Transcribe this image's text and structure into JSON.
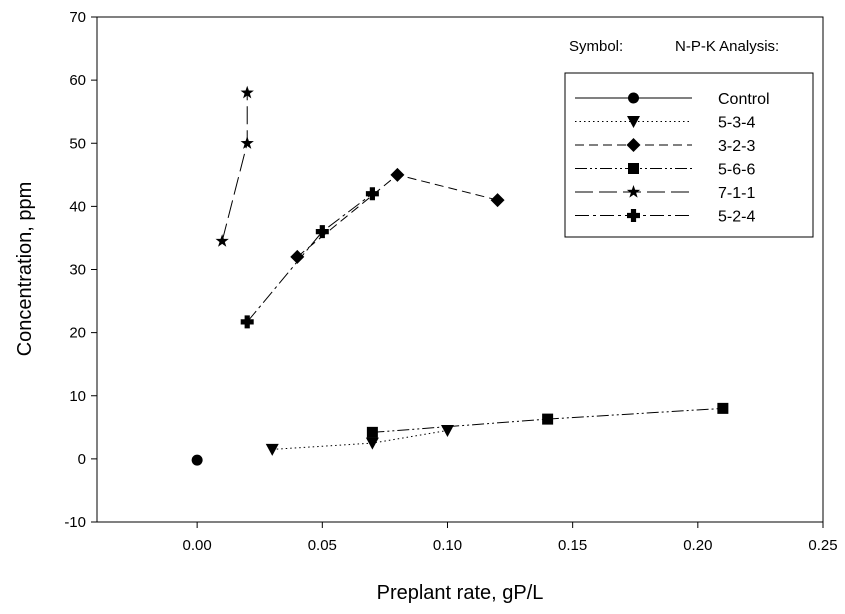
{
  "chart_data": {
    "type": "scatter",
    "xlabel": "Preplant rate, gP/L",
    "ylabel": "Concentration, ppm",
    "xlim": [
      -0.04,
      0.25
    ],
    "ylim": [
      -10,
      70
    ],
    "xticks": [
      "0.00",
      "0.05",
      "0.10",
      "0.15",
      "0.20",
      "0.25"
    ],
    "yticks": [
      "-10",
      "0",
      "10",
      "20",
      "30",
      "40",
      "50",
      "60",
      "70"
    ],
    "grid": false,
    "legend": {
      "placement": "top-right",
      "symbol_header": "Symbol:",
      "analysis_header": "N-P-K Analysis:"
    },
    "series": [
      {
        "name": "Control",
        "marker": "circle",
        "dash": "solid",
        "points": [
          [
            0.0,
            -0.2
          ]
        ]
      },
      {
        "name": "5-3-4",
        "marker": "triangle-down",
        "dash": "dotted",
        "points": [
          [
            0.03,
            1.5
          ],
          [
            0.07,
            2.5
          ],
          [
            0.1,
            4.5
          ]
        ]
      },
      {
        "name": "3-2-3",
        "marker": "diamond",
        "dash": "dashed",
        "points": [
          [
            0.04,
            32.0
          ],
          [
            0.08,
            45.0
          ],
          [
            0.12,
            41.0
          ]
        ]
      },
      {
        "name": "5-6-6",
        "marker": "square",
        "dash": "dash-dot-dot",
        "points": [
          [
            0.07,
            4.2
          ],
          [
            0.14,
            6.3
          ],
          [
            0.21,
            8.0
          ]
        ]
      },
      {
        "name": "7-1-1",
        "marker": "star",
        "dash": "long-dash",
        "points": [
          [
            0.01,
            34.5
          ],
          [
            0.02,
            50.0
          ],
          [
            0.02,
            58.0
          ]
        ]
      },
      {
        "name": "5-2-4",
        "marker": "plus",
        "dash": "dash-dot",
        "points": [
          [
            0.02,
            21.7
          ],
          [
            0.05,
            36.0
          ],
          [
            0.07,
            42.0
          ]
        ]
      }
    ]
  }
}
